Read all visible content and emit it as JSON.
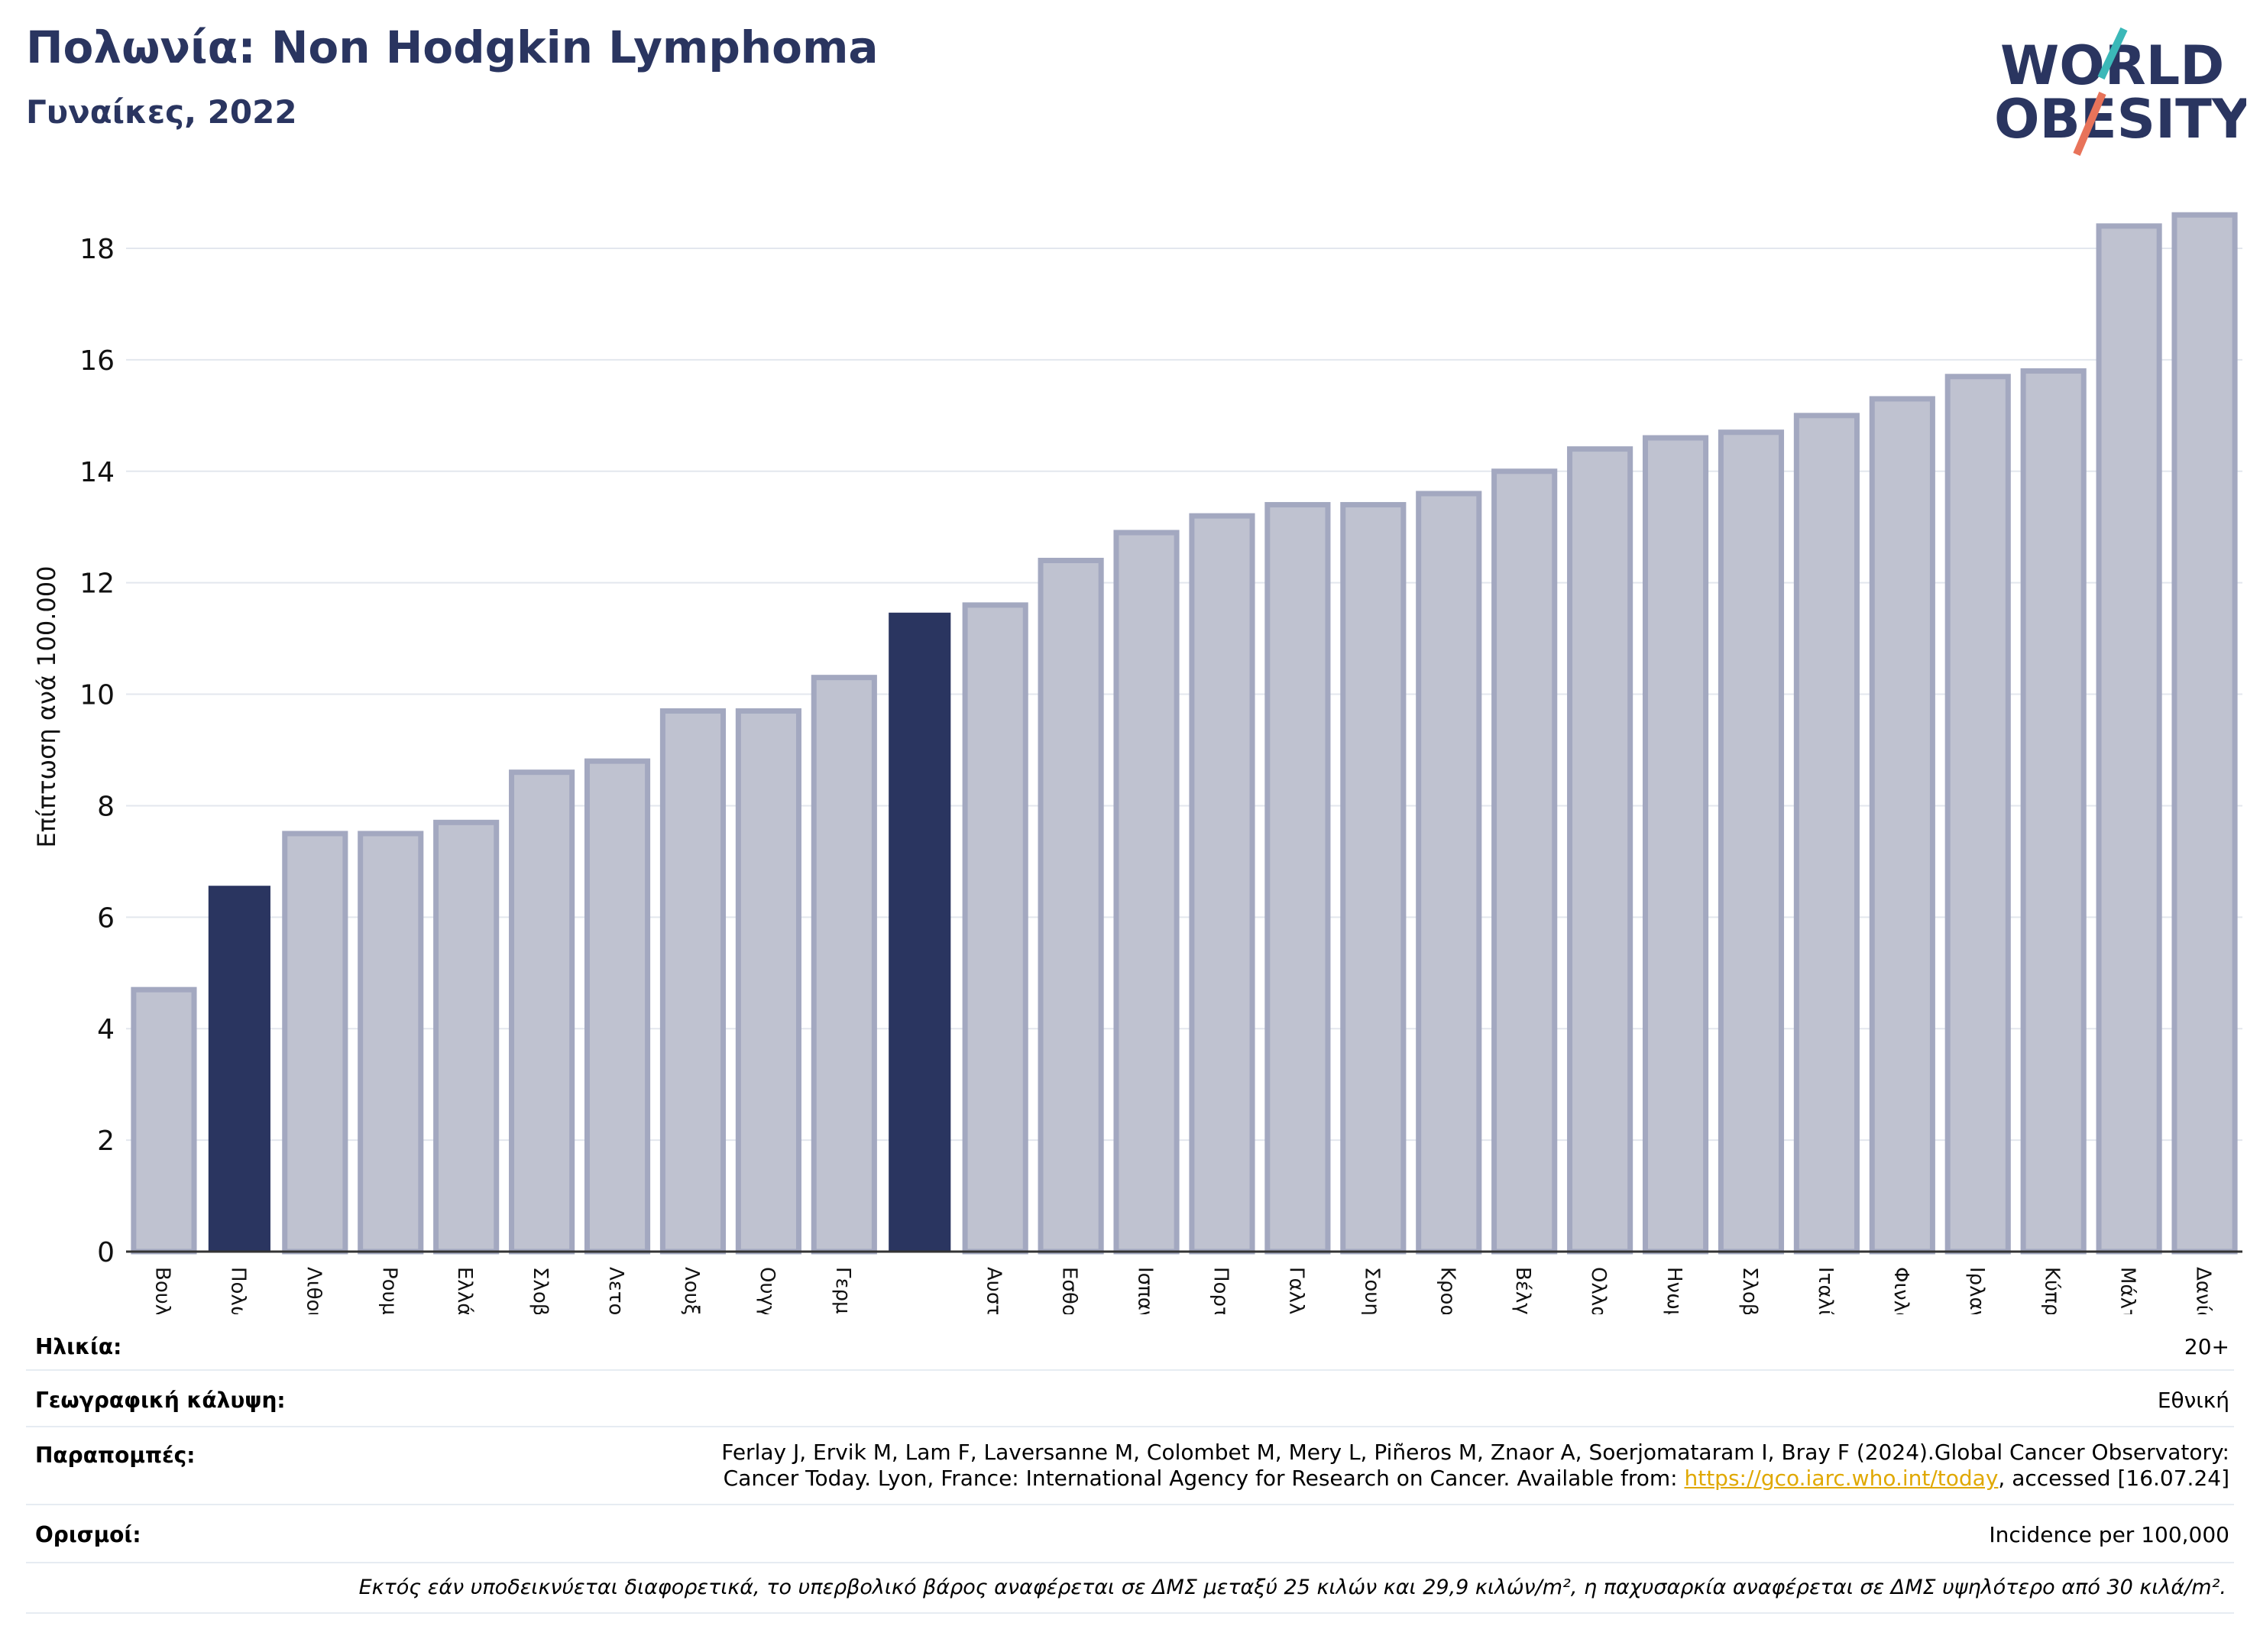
{
  "header": {
    "title": "Πολωνία: Non Hodgkin Lymphoma",
    "subtitle": "Γυναίκες, 2022"
  },
  "logo": {
    "line1": "WORLD",
    "line2": "OBESITY",
    "accent_teal": "#3bb8b8",
    "accent_coral": "#e8735a"
  },
  "colors": {
    "primary": "#2a3560",
    "bar": "#bfc2d0",
    "bar_border": "#a3a8c0"
  },
  "chart_data": {
    "type": "bar",
    "title": "Πολωνία: Non Hodgkin Lymphoma",
    "subtitle": "Γυναίκες, 2022",
    "ylabel": "Επίπτωση ανά 100.000",
    "xlabel": "",
    "ylim": [
      0,
      19
    ],
    "yticks": [
      0,
      2,
      4,
      6,
      8,
      10,
      12,
      14,
      16,
      18
    ],
    "grid": true,
    "categories": [
      "Βουλγαρία",
      "Πολωνία",
      "Λιθουανία",
      "Ρουμανία",
      "Ελλάδα",
      "Σλοβακία",
      "Λετονία",
      "Λουξεμβούργο",
      "Ουγγαρία",
      "Γερμανία",
      "",
      "Αυστρία",
      "Εσθονία",
      "Ισπανία",
      "Πορτογαλία",
      "Γαλλία",
      "Σουηδία",
      "Κροατία",
      "Βέλγιο",
      "Ολλανδία",
      "Ηνωμένο Βασίλειο",
      "Σλοβενία",
      "Ιταλία",
      "Φινλανδία",
      "Ιρλανδία",
      "Κύπρος",
      "Μάλτα",
      "Δανία"
    ],
    "values": [
      4.7,
      6.55,
      7.5,
      7.5,
      7.7,
      8.6,
      8.8,
      9.7,
      9.7,
      10.3,
      11.45,
      11.6,
      12.4,
      12.9,
      13.2,
      13.4,
      13.4,
      13.6,
      14.0,
      14.4,
      14.6,
      14.7,
      15.0,
      15.3,
      15.7,
      15.8,
      18.4,
      18.6
    ],
    "highlighted": [
      1,
      10
    ]
  },
  "info": {
    "age_label": "Ηλικία:",
    "age_value": "20+",
    "coverage_label": "Γεωγραφική κάλυψη:",
    "coverage_value": "Εθνική",
    "refs_label": "Παραπομπές:",
    "refs_line1": "Ferlay J, Ervik M, Lam F, Laversanne M, Colombet M, Mery L, Piñeros M, Znaor A, Soerjomataram I, Bray F (2024).Global Cancer Observatory:",
    "refs_line2_pre": "Cancer Today. Lyon, France: International Agency for Research on Cancer. Available from: ",
    "refs_link": "https://gco.iarc.who.int/today",
    "refs_line2_post": ", accessed [16.07.24]",
    "defs_label": "Ορισμοί:",
    "defs_value": "Incidence per 100,000"
  },
  "footnote": "Εκτός εάν υποδεικνύεται διαφορετικά, το υπερβολικό βάρος αναφέρεται σε ΔΜΣ μεταξύ 25 κιλών και 29,9 κιλών/m², η παχυσαρκία αναφέρεται σε ΔΜΣ υψηλότερο από 30 κιλά/m²."
}
